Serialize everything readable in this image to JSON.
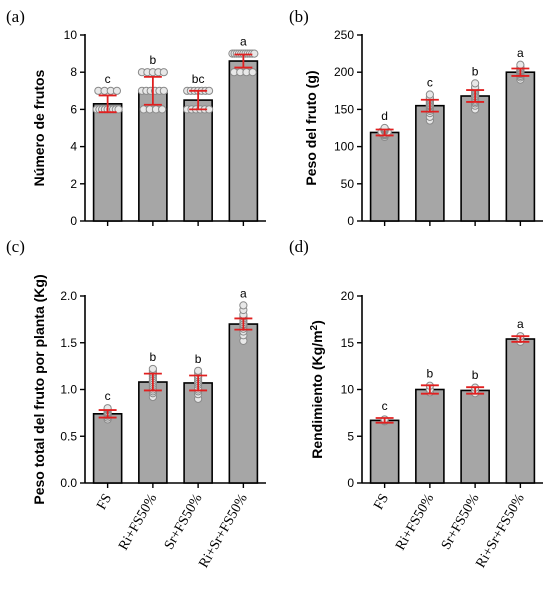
{
  "colors": {
    "bar_fill": "#a6a6a6",
    "bar_stroke": "#000000",
    "point_fill": "#e8e8e8",
    "point_stroke": "#8a8a8a",
    "error_bar": "#e02020"
  },
  "chart_data": [
    {
      "panel": "(a)",
      "type": "bar",
      "ylabel": "Número de frutos",
      "categories": [
        "FS",
        "Ri+FS50%",
        "Sr+FS50%",
        "Ri+Sr+FS50%"
      ],
      "show_category_labels": false,
      "values": [
        6.3,
        7.0,
        6.5,
        8.6
      ],
      "errors": [
        0.45,
        0.75,
        0.5,
        0.35
      ],
      "letters": [
        "c",
        "b",
        "bc",
        "a"
      ],
      "ylim": [
        0,
        10
      ],
      "yticks": [
        0,
        2,
        4,
        6,
        8,
        10
      ],
      "points": [
        [
          6,
          6,
          6,
          6,
          6,
          6,
          6,
          6,
          6,
          7,
          7,
          7,
          7
        ],
        [
          6,
          6,
          6,
          6,
          7,
          7,
          7,
          7,
          7,
          7,
          8,
          8,
          8,
          8,
          8
        ],
        [
          6,
          6,
          6,
          6,
          6,
          6,
          7,
          7,
          7,
          7,
          7,
          7,
          7
        ],
        [
          8,
          8,
          8,
          8,
          9,
          9,
          9,
          9,
          9,
          9,
          9,
          9,
          9,
          9,
          9
        ]
      ]
    },
    {
      "panel": "(b)",
      "type": "bar",
      "ylabel": "Peso del fruto (g)",
      "categories": [
        "FS",
        "Ri+FS50%",
        "Sr+FS50%",
        "Ri+Sr+FS50%"
      ],
      "show_category_labels": false,
      "values": [
        119,
        155,
        168,
        200
      ],
      "errors": [
        4,
        8,
        8,
        5
      ],
      "letters": [
        "d",
        "c",
        "b",
        "a"
      ],
      "ylim": [
        0,
        250
      ],
      "yticks": [
        0,
        50,
        100,
        150,
        200,
        250
      ],
      "points": [
        [
          113,
          115,
          116,
          117,
          118,
          118,
          119,
          120,
          120,
          121,
          122,
          123,
          124,
          125
        ],
        [
          135,
          140,
          145,
          148,
          150,
          152,
          154,
          155,
          156,
          158,
          160,
          162,
          164,
          166,
          170
        ],
        [
          150,
          155,
          158,
          160,
          162,
          165,
          167,
          168,
          170,
          172,
          174,
          176,
          178,
          180,
          185
        ],
        [
          190,
          193,
          195,
          197,
          198,
          199,
          200,
          201,
          202,
          203,
          205,
          207,
          210
        ]
      ]
    },
    {
      "panel": "(c)",
      "type": "bar",
      "ylabel": "Peso total del fruto por planta (Kg)",
      "categories": [
        "FS",
        "Ri+FS50%",
        "Sr+FS50%",
        "Ri+Sr+FS50%"
      ],
      "show_category_labels": true,
      "values": [
        0.74,
        1.08,
        1.07,
        1.7
      ],
      "errors": [
        0.04,
        0.09,
        0.08,
        0.06
      ],
      "letters": [
        "c",
        "b",
        "b",
        "a"
      ],
      "ylim": [
        0,
        2.0
      ],
      "yticks": [
        0.0,
        0.5,
        1.0,
        1.5,
        2.0
      ],
      "ytick_labels": [
        "0.0",
        "0.5",
        "1.0",
        "1.5",
        "2.0"
      ],
      "points": [
        [
          0.68,
          0.7,
          0.72,
          0.73,
          0.74,
          0.75,
          0.76,
          0.78,
          0.79,
          0.8
        ],
        [
          0.92,
          0.96,
          0.98,
          1.0,
          1.02,
          1.04,
          1.06,
          1.08,
          1.1,
          1.12,
          1.14,
          1.16,
          1.18,
          1.2,
          1.22
        ],
        [
          0.9,
          0.95,
          0.98,
          1.0,
          1.02,
          1.05,
          1.07,
          1.09,
          1.11,
          1.13,
          1.15,
          1.18,
          1.2
        ],
        [
          1.52,
          1.58,
          1.62,
          1.65,
          1.67,
          1.69,
          1.7,
          1.72,
          1.74,
          1.76,
          1.78,
          1.8,
          1.85,
          1.9
        ]
      ]
    },
    {
      "panel": "(d)",
      "type": "bar",
      "ylabel": "Rendimiento (Kg/m²)",
      "categories": [
        "FS",
        "Ri+FS50%",
        "Sr+FS50%",
        "Ri+Sr+FS50%"
      ],
      "show_category_labels": true,
      "values": [
        6.7,
        10.0,
        9.9,
        15.4
      ],
      "errors": [
        0.25,
        0.45,
        0.35,
        0.3
      ],
      "letters": [
        "c",
        "b",
        "b",
        "a"
      ],
      "ylim": [
        0,
        20
      ],
      "yticks": [
        0,
        5,
        10,
        15,
        20
      ],
      "points": [
        [
          6.6,
          6.7,
          6.8
        ],
        [
          9.7,
          10.0,
          10.4
        ],
        [
          9.6,
          9.9,
          10.2
        ],
        [
          15.1,
          15.4,
          15.7
        ]
      ]
    }
  ]
}
